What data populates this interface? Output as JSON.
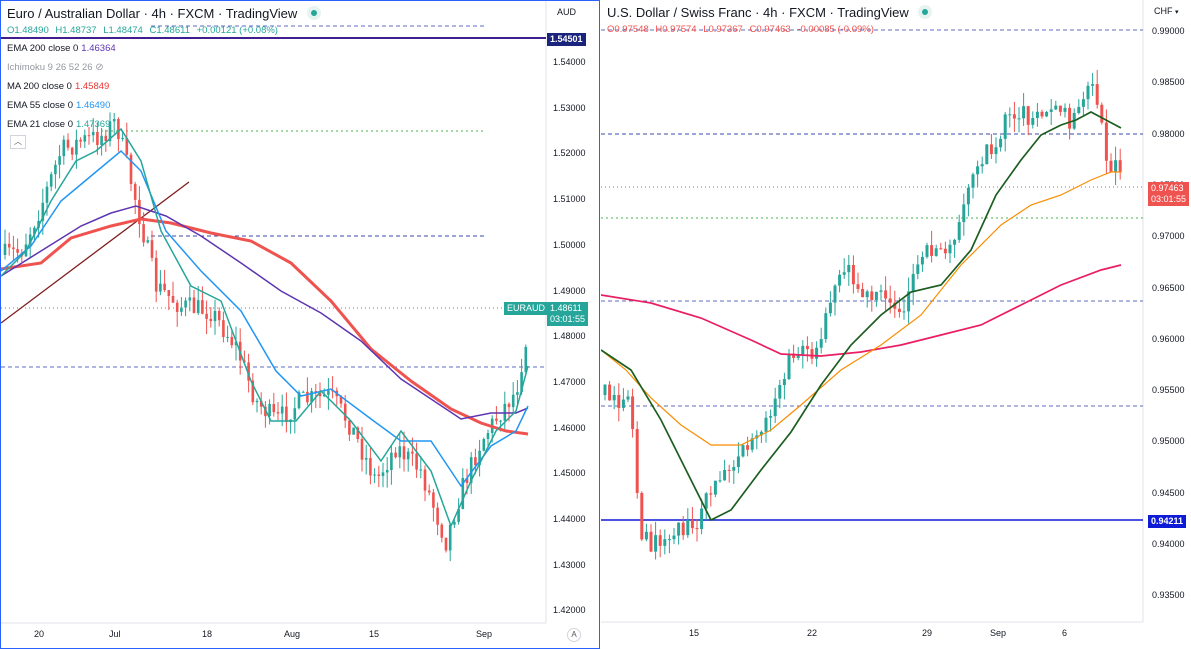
{
  "left": {
    "title": "Euro / Australian Dollar",
    "timeframe": "4h",
    "broker": "FXCM",
    "platform": "TradingView",
    "ohlc": {
      "o": "O1.48490",
      "h": "H1.48737",
      "l": "L1.48474",
      "c": "C1.48611",
      "chg": "+0.00121 (+0.08%)"
    },
    "indicators": [
      {
        "label": "EMA 200 close 0",
        "value": "1.46364",
        "color": "#5e35b1"
      },
      {
        "label": "Ichimoku 9 26 52 26",
        "value": "",
        "color": "#9598a1"
      },
      {
        "label": "MA 200 close 0",
        "value": "1.45849",
        "color": "#e53935"
      },
      {
        "label": "EMA 55 close 0",
        "value": "1.46490",
        "color": "#2196f3"
      },
      {
        "label": "EMA 21 close 0",
        "value": "1.47369",
        "color": "#26a69a"
      }
    ],
    "currency": "AUD",
    "y_ticks": [
      "1.54000",
      "1.53000",
      "1.52000",
      "1.51000",
      "1.50000",
      "1.49000",
      "1.48000",
      "1.47000",
      "1.46000",
      "1.45000",
      "1.44000",
      "1.43000",
      "1.42000"
    ],
    "x_ticks": [
      "20",
      "Jul",
      "18",
      "Aug",
      "15",
      "Sep"
    ],
    "symbol_tag": "EURAUD",
    "price": "1.48611",
    "countdown": "03:01:55",
    "hline_label": "1.54501",
    "auto_btn": "A"
  },
  "right": {
    "title": "U.S. Dollar / Swiss Franc",
    "timeframe": "4h",
    "broker": "FXCM",
    "platform": "TradingView",
    "ohlc": {
      "o": "O0.97548",
      "h": "H0.97574",
      "l": "L0.97367",
      "c": "C0.97463",
      "chg": "-0.00085 (-0.09%)"
    },
    "currency": "CHF",
    "y_ticks": [
      "0.99000",
      "0.98500",
      "0.98000",
      "0.97500",
      "0.97000",
      "0.96500",
      "0.96000",
      "0.95500",
      "0.95000",
      "0.94500",
      "0.94000",
      "0.93500"
    ],
    "x_ticks": [
      "15",
      "22",
      "29",
      "Sep",
      "6"
    ],
    "price": "0.97463",
    "countdown": "03:01:55",
    "hline_label": "0.94211"
  },
  "colors": {
    "up": "#26a69a",
    "down": "#ef5350",
    "accent": "#2962ff"
  }
}
